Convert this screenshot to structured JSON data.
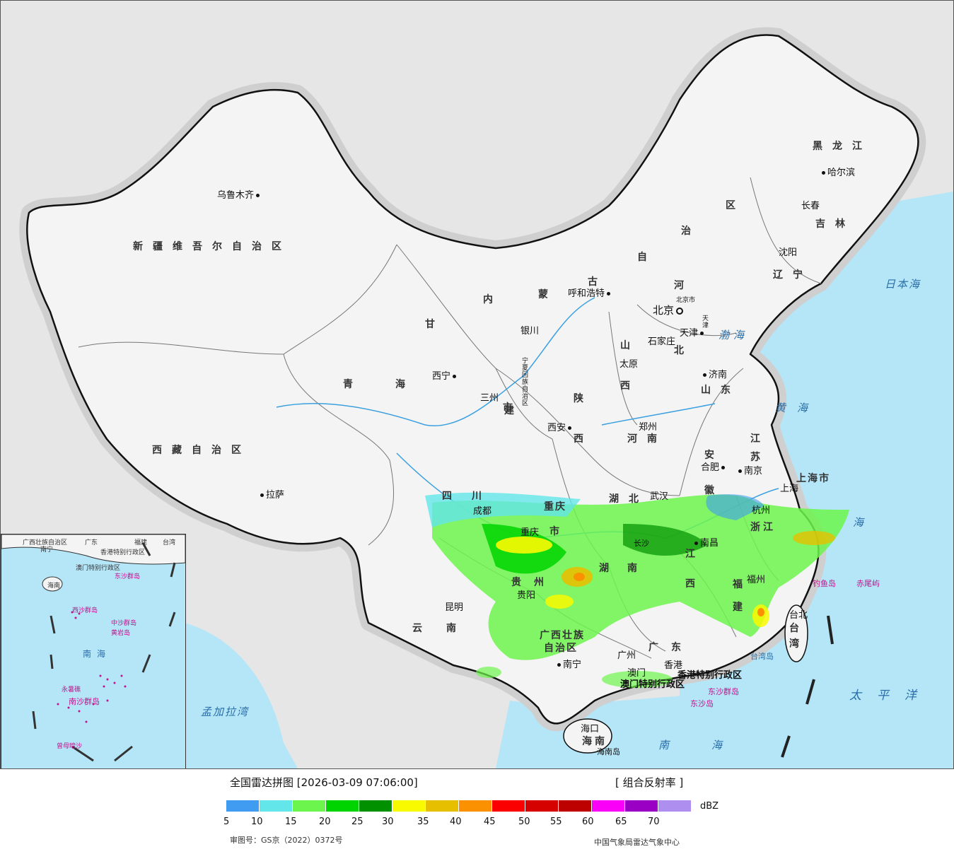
{
  "map": {
    "provinces": [
      {
        "id": "xinjiang",
        "text": "新疆维吾尔自治区"
      },
      {
        "id": "xizang",
        "text": "西藏自治区"
      },
      {
        "id": "qinghai-1",
        "text": "青"
      },
      {
        "id": "qinghai-2",
        "text": "海"
      },
      {
        "id": "gansu-1",
        "text": "甘"
      },
      {
        "id": "gansu-2",
        "text": "肃"
      },
      {
        "id": "neimenggu-1",
        "text": "内"
      },
      {
        "id": "neimenggu-2",
        "text": "蒙"
      },
      {
        "id": "neimenggu-3",
        "text": "古"
      },
      {
        "id": "neimenggu-4",
        "text": "自"
      },
      {
        "id": "neimenggu-5",
        "text": "治"
      },
      {
        "id": "neimenggu-6",
        "text": "区"
      },
      {
        "id": "heilongjiang",
        "text": "黑龙江"
      },
      {
        "id": "jilin",
        "text": "吉林"
      },
      {
        "id": "liaoning",
        "text": "辽宁"
      },
      {
        "id": "hebei-1",
        "text": "河"
      },
      {
        "id": "hebei-2",
        "text": "北"
      },
      {
        "id": "shanxi-1",
        "text": "山"
      },
      {
        "id": "shanxi-2",
        "text": "西"
      },
      {
        "id": "shaanxi-1",
        "text": "陕"
      },
      {
        "id": "shaanxi-2",
        "text": "西"
      },
      {
        "id": "shandong",
        "text": "山东"
      },
      {
        "id": "henan",
        "text": "河南"
      },
      {
        "id": "jiangsu-1",
        "text": "江"
      },
      {
        "id": "jiangsu-2",
        "text": "苏"
      },
      {
        "id": "anhui-1",
        "text": "安"
      },
      {
        "id": "anhui-2",
        "text": "徽"
      },
      {
        "id": "shanghai",
        "text": "上海市"
      },
      {
        "id": "zhejiang",
        "text": "浙江"
      },
      {
        "id": "hubei",
        "text": "湖北"
      },
      {
        "id": "hunan-1",
        "text": "湖"
      },
      {
        "id": "hunan-2",
        "text": "南"
      },
      {
        "id": "jiangxi-1",
        "text": "江"
      },
      {
        "id": "jiangxi-2",
        "text": "西"
      },
      {
        "id": "fujian-1",
        "text": "福"
      },
      {
        "id": "fujian-2",
        "text": "建"
      },
      {
        "id": "sichuan",
        "text": "四川"
      },
      {
        "id": "chongqing-1",
        "text": "重庆"
      },
      {
        "id": "chongqing-2",
        "text": "市"
      },
      {
        "id": "guizhou",
        "text": "贵州"
      },
      {
        "id": "yunnan",
        "text": "云南"
      },
      {
        "id": "guangxi-1",
        "text": "广西壮族"
      },
      {
        "id": "guangxi-2",
        "text": "自治区"
      },
      {
        "id": "guangdong",
        "text": "广东"
      },
      {
        "id": "hainan",
        "text": "海南"
      },
      {
        "id": "taiwan-1",
        "text": "台"
      },
      {
        "id": "taiwan-2",
        "text": "湾"
      },
      {
        "id": "ningxia",
        "text": "宁夏回族自治区"
      },
      {
        "id": "gansu-3",
        "text": "三州"
      },
      {
        "id": "shi",
        "text": "市"
      },
      {
        "id": "hk",
        "text": "香港特别行政区"
      },
      {
        "id": "macau",
        "text": "澳门特别行政区"
      }
    ],
    "cities": [
      {
        "id": "urumqi",
        "text": "乌鲁木齐"
      },
      {
        "id": "lhasa",
        "text": "拉萨"
      },
      {
        "id": "xining",
        "text": "西宁"
      },
      {
        "id": "yinchuan",
        "text": "银川"
      },
      {
        "id": "hohhot",
        "text": "呼和浩特"
      },
      {
        "id": "beijing",
        "text": "北京"
      },
      {
        "id": "beijing-shi",
        "text": "北京市"
      },
      {
        "id": "tianjin",
        "text": "天津"
      },
      {
        "id": "tianjin-2",
        "text": "天津"
      },
      {
        "id": "shijiazhuang",
        "text": "石家庄"
      },
      {
        "id": "taiyuan",
        "text": "太原"
      },
      {
        "id": "jinan",
        "text": "济南"
      },
      {
        "id": "zhengzhou",
        "text": "郑州"
      },
      {
        "id": "xian",
        "text": "西安"
      },
      {
        "id": "hefei",
        "text": "合肥"
      },
      {
        "id": "nanjing",
        "text": "南京"
      },
      {
        "id": "shanghai-city",
        "text": "上海"
      },
      {
        "id": "hangzhou",
        "text": "杭州"
      },
      {
        "id": "wuhan",
        "text": "武汉"
      },
      {
        "id": "chengdu",
        "text": "成都"
      },
      {
        "id": "chongqing-city",
        "text": "重庆"
      },
      {
        "id": "guiyang",
        "text": "贵阳"
      },
      {
        "id": "kunming",
        "text": "昆明"
      },
      {
        "id": "nanning",
        "text": "南宁"
      },
      {
        "id": "guangzhou",
        "text": "广州"
      },
      {
        "id": "hongkong",
        "text": "香港"
      },
      {
        "id": "macao",
        "text": "澳门"
      },
      {
        "id": "haikou",
        "text": "海口"
      },
      {
        "id": "hainandao",
        "text": "海南岛"
      },
      {
        "id": "nanchang",
        "text": "南昌"
      },
      {
        "id": "changsha",
        "text": "长沙"
      },
      {
        "id": "fuzhou",
        "text": "福州"
      },
      {
        "id": "taibei",
        "text": "台北"
      },
      {
        "id": "taiwandao",
        "text": "台湾岛"
      },
      {
        "id": "harbin",
        "text": "哈尔滨"
      },
      {
        "id": "changchun",
        "text": "长春"
      },
      {
        "id": "shenyang",
        "text": "沈阳"
      },
      {
        "id": "diaoyu",
        "text": "钓鱼岛"
      },
      {
        "id": "chiwei",
        "text": "赤尾屿"
      },
      {
        "id": "dongsha-1",
        "text": "东沙群岛"
      },
      {
        "id": "dongsha-2",
        "text": "东沙岛"
      }
    ],
    "seas": [
      {
        "id": "bohai",
        "text": "渤海"
      },
      {
        "id": "huanghai",
        "text": "黄海"
      },
      {
        "id": "donghai",
        "text": "海"
      },
      {
        "id": "nanhai-1",
        "text": "南"
      },
      {
        "id": "nanhai-2",
        "text": "海"
      },
      {
        "id": "riben",
        "text": "日本海"
      },
      {
        "id": "taipingyang",
        "text": "太平洋"
      },
      {
        "id": "mengjiala",
        "text": "孟加拉湾"
      }
    ],
    "inset": {
      "labels": [
        {
          "id": "i-guangxi",
          "text": "广西壮族自治区"
        },
        {
          "id": "i-nanning",
          "text": "南宁"
        },
        {
          "id": "i-guangdong",
          "text": "广东"
        },
        {
          "id": "i-fujian",
          "text": "福建"
        },
        {
          "id": "i-taiwan",
          "text": "台湾"
        },
        {
          "id": "i-hk",
          "text": "香港特别行政区"
        },
        {
          "id": "i-macau",
          "text": "澳门特别行政区"
        },
        {
          "id": "i-dongsha",
          "text": "东沙群岛"
        },
        {
          "id": "i-hainan",
          "text": "海南"
        },
        {
          "id": "i-xisha",
          "text": "西沙群岛"
        },
        {
          "id": "i-zhongsha",
          "text": "中沙群岛"
        },
        {
          "id": "i-huangyan",
          "text": "黄岩岛"
        },
        {
          "id": "i-nanhai",
          "text": "南海"
        },
        {
          "id": "i-yongshu",
          "text": "永暑礁"
        },
        {
          "id": "i-nansha",
          "text": "南沙群岛"
        },
        {
          "id": "i-zengmu",
          "text": "曾母暗沙"
        }
      ]
    }
  },
  "legend": {
    "title": "全国雷达拼图 [2026-03-09 07:06:00]",
    "type": "[ 组合反射率 ]",
    "unit": "dBZ",
    "colors": [
      "#3f9cf0",
      "#62e6ea",
      "#6cf54c",
      "#00d400",
      "#009000",
      "#f9f900",
      "#e6c000",
      "#fb9100",
      "#fb0000",
      "#d50000",
      "#bd0000",
      "#fb00f9",
      "#9900c3",
      "#ae8ff0"
    ],
    "ticks": [
      "5",
      "10",
      "15",
      "20",
      "25",
      "30",
      "35",
      "40",
      "45",
      "50",
      "55",
      "60",
      "65",
      "70"
    ],
    "review_number": "审图号：GS京（2022）0372号",
    "source": "中国气象局雷达气象中心"
  }
}
